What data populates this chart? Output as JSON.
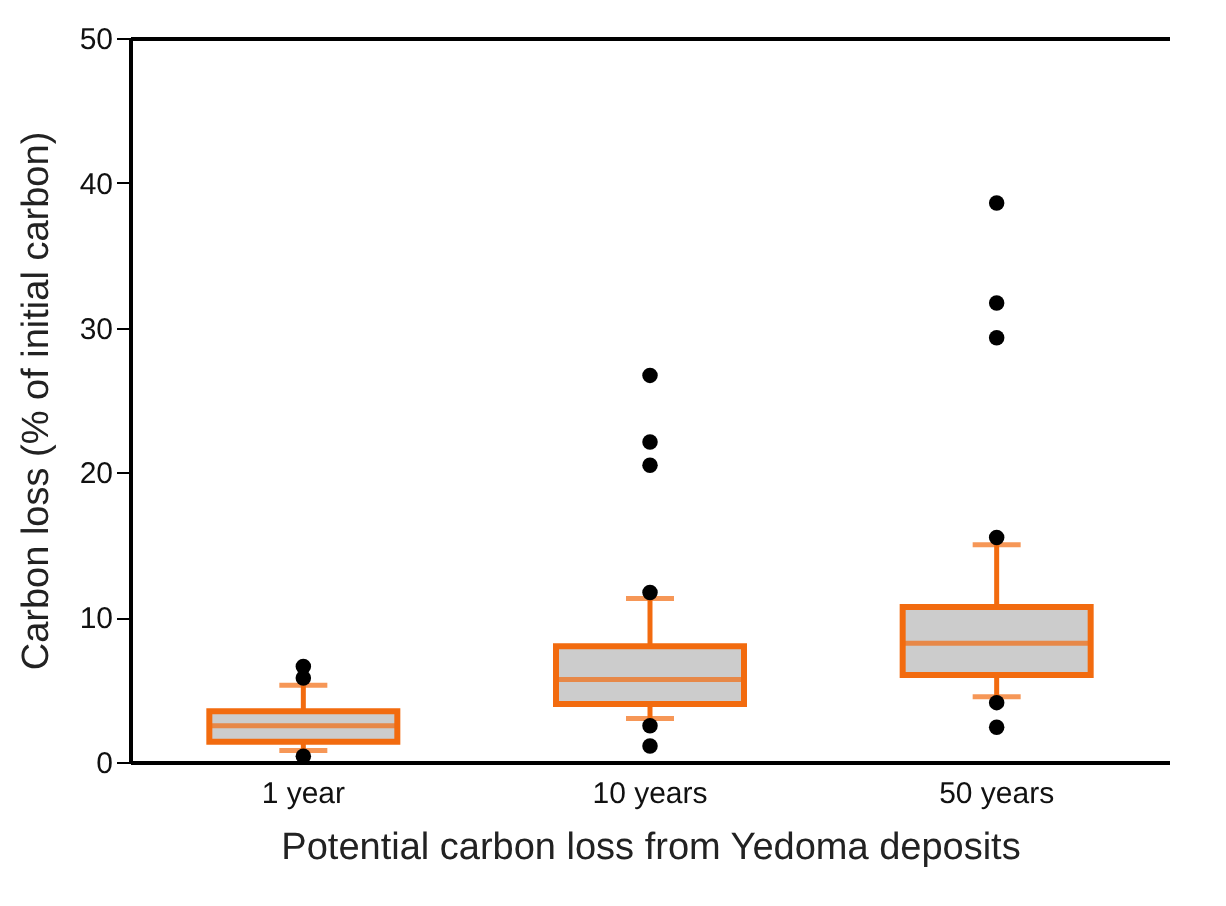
{
  "chart_data": {
    "type": "box",
    "categories": [
      "1 year",
      "10 years",
      "50 years"
    ],
    "xlabel": "Potential carbon loss from Yedoma deposits",
    "ylabel": "Carbon loss (% of initial carbon)",
    "ylim": [
      0,
      50
    ],
    "yticks": [
      0,
      10,
      20,
      30,
      40,
      50
    ],
    "series": [
      {
        "color": "#f26b0f",
        "boxes": [
          {
            "low": 0.8,
            "q1": 1.4,
            "median": 2.5,
            "q3": 3.5,
            "high": 5.3,
            "outliers": [
              0.4,
              5.8,
              6.6
            ]
          },
          {
            "low": 3.0,
            "q1": 4.0,
            "median": 5.7,
            "q3": 8.0,
            "high": 11.3,
            "outliers": [
              1.1,
              2.5,
              11.7,
              20.5,
              22.1,
              26.7
            ]
          },
          {
            "low": 4.5,
            "q1": 6.0,
            "median": 8.2,
            "q3": 10.7,
            "high": 15.0,
            "outliers": [
              2.4,
              4.1,
              15.5,
              29.3,
              31.7,
              38.6
            ]
          }
        ]
      }
    ]
  }
}
